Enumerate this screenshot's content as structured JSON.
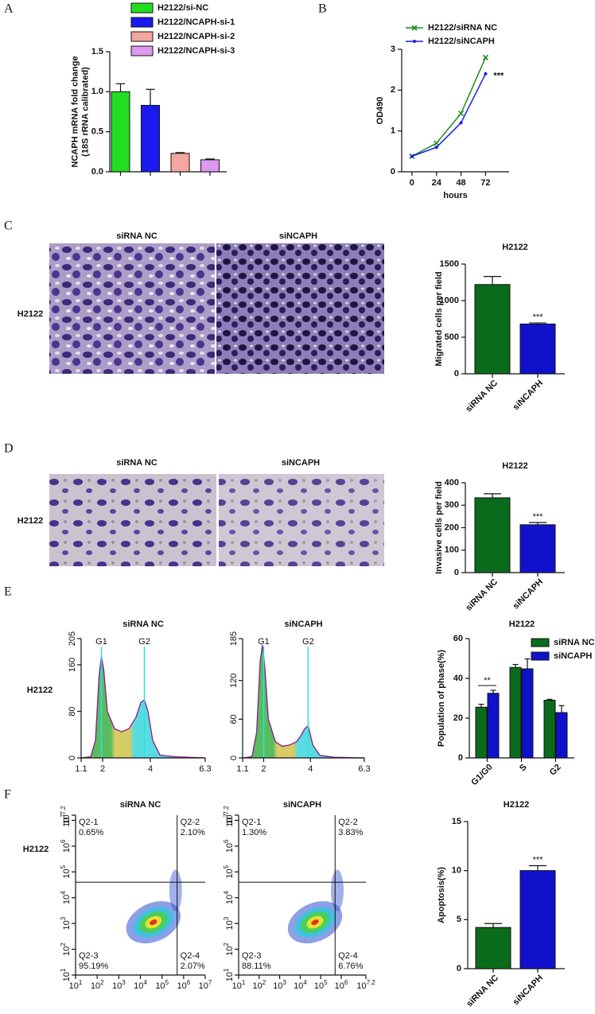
{
  "panel_labels": [
    "A",
    "B",
    "C",
    "D",
    "E",
    "F"
  ],
  "micrographs": [
    {
      "columns": [
        "siRNA NC",
        "siNCAPH"
      ],
      "row_label": "H2122"
    },
    {
      "columns": [
        "siRNA NC",
        "siNCAPH"
      ],
      "row_label": "H2122"
    }
  ],
  "row_labels": [
    "H2122",
    "H2122"
  ],
  "chart_data": [
    {
      "type": "bar",
      "ylabel": [
        "NCAPH mRNA fold change",
        "(18S rRNA calibrated)"
      ],
      "categories": [
        null
      ],
      "series": [
        {
          "name": "H2122/si-NC",
          "color": "#22dd22",
          "values": [
            1.0
          ],
          "errors": [
            0.1
          ]
        },
        {
          "name": "H2122/NCAPH-si-1",
          "color": "#1a1aee",
          "values": [
            0.83
          ],
          "errors": [
            0.2
          ]
        },
        {
          "name": "H2122/NCAPH-si-2",
          "color": "#f4a6a0",
          "values": [
            0.23
          ],
          "errors": [
            0.01
          ]
        },
        {
          "name": "H2122/NCAPH-si-3",
          "color": "#dd99ee",
          "values": [
            0.15
          ],
          "errors": [
            0.01
          ]
        }
      ],
      "ylim": [
        0,
        1.5
      ],
      "yticks": [
        {
          "value": 0,
          "label": "0.0"
        },
        0.5,
        {
          "value": 1,
          "label": "1.0"
        },
        1.5
      ]
    },
    {
      "type": "line",
      "xlabel": "hours",
      "ylabel": "OD490",
      "x": [
        0,
        24,
        48,
        72
      ],
      "series": [
        {
          "name": "H2122/siRNA NC",
          "color": "#1e8c1e",
          "marker": "x",
          "values": [
            0.38,
            0.7,
            1.43,
            2.8
          ]
        },
        {
          "name": "H2122/siNCAPH",
          "color": "#1a1aee",
          "marker": "dot",
          "values": [
            0.38,
            0.6,
            1.2,
            2.4
          ]
        }
      ],
      "xlim": [
        -10,
        95
      ],
      "xticks": [
        0,
        24,
        48,
        72
      ],
      "ylim": [
        0,
        3
      ],
      "yticks": [
        0,
        1,
        2,
        3
      ],
      "annotation": "***"
    },
    {
      "type": "bar",
      "title": "H2122",
      "ylabel": "Migrated cells per field",
      "categories": [
        "siRNA NC",
        "siNCAPH"
      ],
      "values": [
        1220,
        680
      ],
      "errors": [
        110,
        15
      ],
      "colors": [
        "#0b6b1c",
        "#1111cc"
      ],
      "ylim": [
        0,
        1500
      ],
      "yticks": [
        0,
        500,
        1000,
        1500
      ],
      "annotation": "***"
    },
    {
      "type": "bar",
      "title": "H2122",
      "ylabel": "Invasive cells per field",
      "categories": [
        "siRNA NC",
        "siNCAPH"
      ],
      "values": [
        333,
        213
      ],
      "errors": [
        18,
        10
      ],
      "colors": [
        "#0b6b1c",
        "#1111cc"
      ],
      "ylim": [
        0,
        400
      ],
      "yticks": [
        0,
        100,
        200,
        300,
        400
      ],
      "annotation": "***"
    },
    {
      "type": "area",
      "title": "siRNA NC",
      "color": "#8b1a8b",
      "x": [
        1.1,
        1.5,
        1.7,
        1.85,
        1.95,
        2.05,
        2.2,
        2.5,
        2.8,
        3.1,
        3.4,
        3.6,
        3.75,
        3.9,
        4.1,
        4.4,
        5,
        6.3
      ],
      "values": [
        0,
        2,
        30,
        140,
        175,
        150,
        80,
        50,
        45,
        50,
        70,
        95,
        100,
        80,
        30,
        5,
        2,
        0
      ],
      "markers": [
        {
          "label": "G1",
          "x": 1.95
        },
        {
          "label": "G2",
          "x": 3.75
        }
      ],
      "xlim": [
        1.1,
        6.3
      ],
      "xticks": [
        1.1,
        2,
        4,
        6.3
      ],
      "ylim": [
        0,
        205
      ],
      "yticks": [
        0,
        80,
        160,
        205
      ]
    },
    {
      "type": "area",
      "title": "siNCAPH",
      "color": "#8b1a8b",
      "x": [
        1.1,
        1.5,
        1.7,
        1.85,
        1.95,
        2.05,
        2.2,
        2.5,
        2.8,
        3.1,
        3.4,
        3.6,
        3.75,
        3.9,
        4.1,
        4.4,
        5,
        6.3
      ],
      "values": [
        0,
        2,
        40,
        150,
        175,
        140,
        60,
        25,
        18,
        20,
        25,
        35,
        45,
        50,
        20,
        4,
        1,
        0
      ],
      "markers": [
        {
          "label": "G1",
          "x": 2.0
        },
        {
          "label": "G2",
          "x": 3.9
        }
      ],
      "xlim": [
        1.1,
        6.3
      ],
      "xticks": [
        1.1,
        2,
        4,
        6.3
      ],
      "ylim": [
        0,
        185
      ],
      "yticks": [
        0,
        60,
        120,
        185
      ]
    },
    {
      "type": "bar",
      "title": "H2122",
      "ylabel": "Population of phase(%)",
      "categories": [
        "G1/G0",
        "S",
        "G2"
      ],
      "series": [
        {
          "name": "siRNA NC",
          "color": "#0b6b1c",
          "values": [
            25.5,
            45.5,
            29
          ],
          "errors": [
            1.5,
            1.5,
            0.5
          ]
        },
        {
          "name": "siNCAPH",
          "color": "#1111cc",
          "values": [
            32.5,
            44.8,
            22.8
          ],
          "errors": [
            1.5,
            5,
            3.5
          ]
        }
      ],
      "ylim": [
        0,
        60
      ],
      "yticks": [
        0,
        20,
        40,
        60
      ],
      "annotation": "**"
    },
    {
      "type": "density",
      "title": "siRNA NC",
      "log_scale": true,
      "xlim": [
        10,
        10000000
      ],
      "ylim": [
        10,
        15848932
      ],
      "xticks": [
        {
          "value": 10,
          "label": "10",
          "exponent": "1"
        },
        {
          "value": 100,
          "label": "10",
          "exponent": "2"
        },
        {
          "value": 1000,
          "label": "10",
          "exponent": "3"
        },
        {
          "value": 10000,
          "label": "10",
          "exponent": "4"
        },
        {
          "value": 100000,
          "label": "10",
          "exponent": "5"
        },
        {
          "value": 1000000,
          "label": "10",
          "exponent": "6"
        },
        {
          "value": 10000000,
          "label": "10",
          "exponent": "7"
        }
      ],
      "yticks": [
        {
          "value": 10,
          "label": "10",
          "exponent": "1"
        },
        {
          "value": 100,
          "label": "10",
          "exponent": "2"
        },
        {
          "value": 1000,
          "label": "10",
          "exponent": "3"
        },
        {
          "value": 10000,
          "label": "10",
          "exponent": "4"
        },
        {
          "value": 100000,
          "label": "10",
          "exponent": "5"
        },
        {
          "value": 1000000,
          "label": "10",
          "exponent": "6"
        },
        {
          "value": 10000000,
          "label": "10",
          "exponent": "7"
        },
        {
          "value": 15848932,
          "label": "10",
          "exponent": "7.2"
        }
      ],
      "gate": [
        500000,
        40000
      ],
      "quadrants": [
        {
          "name": "Q2-1",
          "percent": "0.65%"
        },
        {
          "name": "Q2-2",
          "percent": "2.10%"
        },
        {
          "name": "Q2-3",
          "percent": "95.19%"
        },
        {
          "name": "Q2-4",
          "percent": "2.07%"
        }
      ]
    },
    {
      "type": "density",
      "title": "siNCAPH",
      "log_scale": true,
      "xlim": [
        10,
        15848932
      ],
      "ylim": [
        10,
        15848932
      ],
      "xticks": [
        {
          "value": 10,
          "label": "10",
          "exponent": "1"
        },
        {
          "value": 100,
          "label": "10",
          "exponent": "2"
        },
        {
          "value": 1000,
          "label": "10",
          "exponent": "3"
        },
        {
          "value": 10000,
          "label": "10",
          "exponent": "4"
        },
        {
          "value": 100000,
          "label": "10",
          "exponent": "5"
        },
        {
          "value": 1000000,
          "label": "10",
          "exponent": "6"
        },
        {
          "value": 15848932,
          "label": "10",
          "exponent": "7.2"
        }
      ],
      "yticks": [
        {
          "value": 10,
          "label": "10",
          "exponent": "1"
        },
        {
          "value": 100,
          "label": "10",
          "exponent": "2"
        },
        {
          "value": 1000,
          "label": "10",
          "exponent": "3"
        },
        {
          "value": 10000,
          "label": "10",
          "exponent": "4"
        },
        {
          "value": 100000,
          "label": "10",
          "exponent": "5"
        },
        {
          "value": 1000000,
          "label": "10",
          "exponent": "6"
        },
        {
          "value": 10000000,
          "label": "10",
          "exponent": "7"
        },
        {
          "value": 15848932,
          "label": "10",
          "exponent": "7.2"
        }
      ],
      "gate": [
        500000,
        40000
      ],
      "quadrants": [
        {
          "name": "Q2-1",
          "percent": "1.30%"
        },
        {
          "name": "Q2-2",
          "percent": "3.83%"
        },
        {
          "name": "Q2-3",
          "percent": "88.11%"
        },
        {
          "name": "Q2-4",
          "percent": "6.76%"
        }
      ]
    },
    {
      "type": "bar",
      "title": "H2122",
      "ylabel": "Apoptosis(%)",
      "categories": [
        "siRNA NC",
        "siNCAPH"
      ],
      "values": [
        4.2,
        10.0
      ],
      "errors": [
        0.4,
        0.5
      ],
      "colors": [
        "#0b6b1c",
        "#1111cc"
      ],
      "ylim": [
        0,
        15
      ],
      "yticks": [
        0,
        5,
        10,
        15
      ],
      "annotation": "***"
    }
  ]
}
